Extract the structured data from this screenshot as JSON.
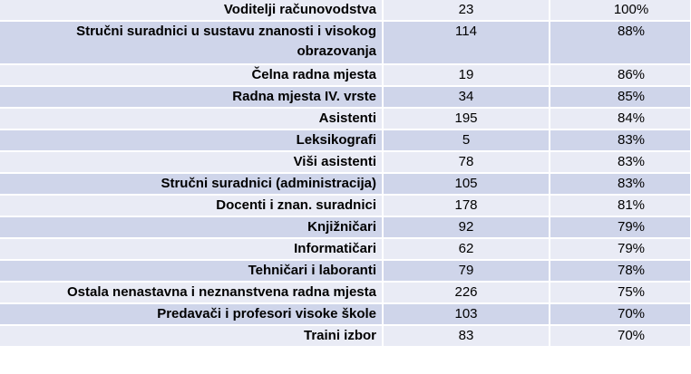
{
  "rows": [
    {
      "label": "",
      "count": "",
      "pct": ""
    },
    {
      "label": "Voditelji računovodstva",
      "count": "23",
      "pct": "100%"
    },
    {
      "label": "Stručni suradnici u sustavu znanosti i visokog obrazovanja",
      "count": "114",
      "pct": "88%"
    },
    {
      "label": "Čelna radna mjesta",
      "count": "19",
      "pct": "86%"
    },
    {
      "label": "Radna mjesta IV. vrste",
      "count": "34",
      "pct": "85%"
    },
    {
      "label": "Asistenti",
      "count": "195",
      "pct": "84%"
    },
    {
      "label": "Leksikografi",
      "count": "5",
      "pct": "83%"
    },
    {
      "label": "Viši asistenti",
      "count": "78",
      "pct": "83%"
    },
    {
      "label": "Stručni suradnici (administracija)",
      "count": "105",
      "pct": "83%"
    },
    {
      "label": "Docenti i znan. suradnici",
      "count": "178",
      "pct": "81%"
    },
    {
      "label": "Knjižničari",
      "count": "92",
      "pct": "79%"
    },
    {
      "label": "Informatičari",
      "count": "62",
      "pct": "79%"
    },
    {
      "label": "Tehničari i laboranti",
      "count": "79",
      "pct": "78%"
    },
    {
      "label": "Ostala nenastavna i neznanstvena radna mjesta",
      "count": "226",
      "pct": "75%"
    },
    {
      "label": "Predavači i profesori visoke škole",
      "count": "103",
      "pct": "70%"
    },
    {
      "label": "Traini izbor",
      "count": "83",
      "pct": "70%"
    }
  ]
}
